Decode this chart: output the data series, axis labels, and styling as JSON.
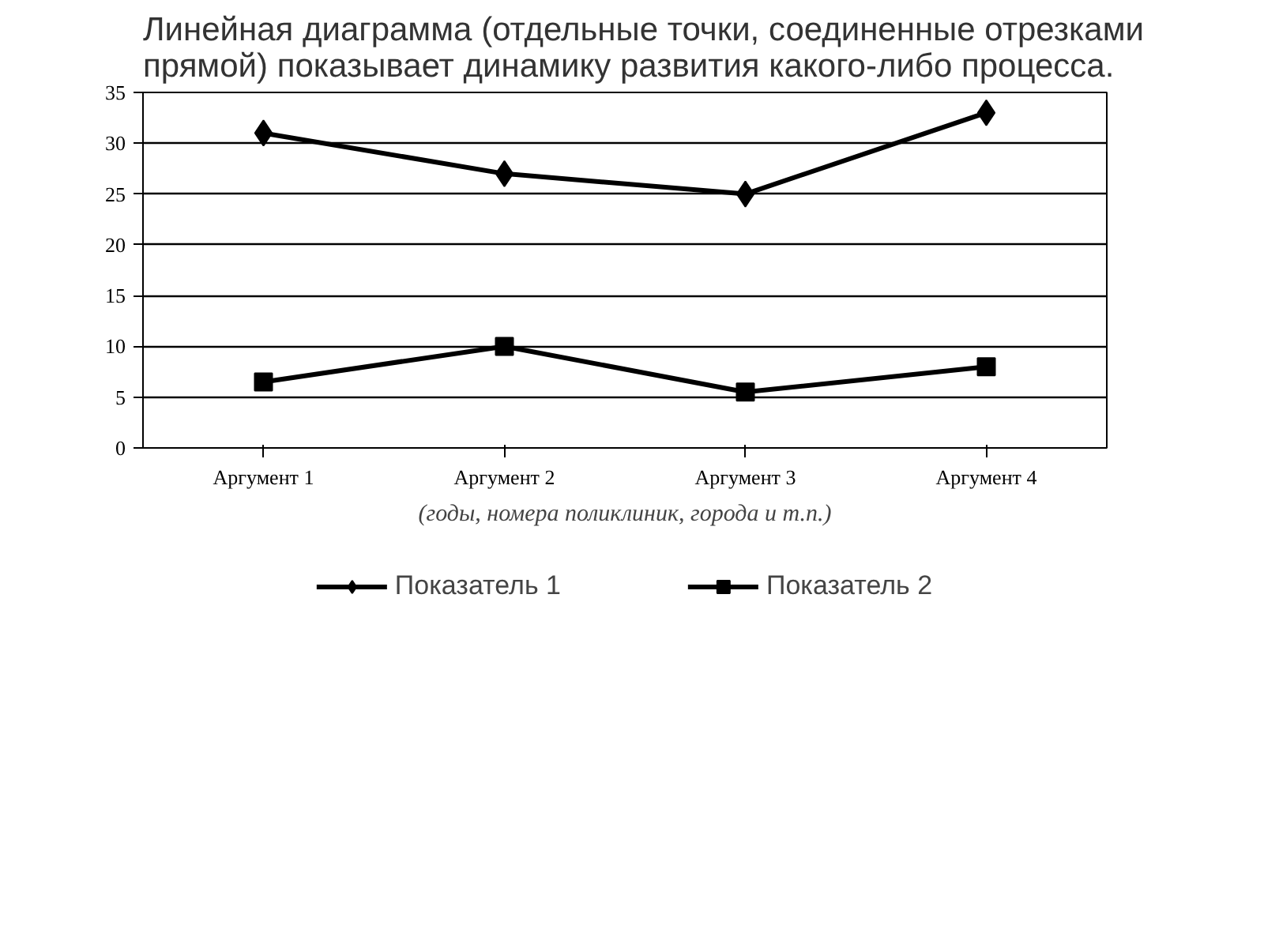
{
  "chart_data": {
    "type": "line",
    "title": "Линейная диаграмма (отдельные точки, соединенные отрезками прямой) показывает динамику развития какого-либо процесса.",
    "xlabel": "(годы, номера поликлиник, города и т.п.)",
    "categories": [
      "Аргумент 1",
      "Аргумент 2",
      "Аргумент 3",
      "Аргумент 4"
    ],
    "series": [
      {
        "name": "Показатель 1",
        "color": "#000000",
        "marker": "diamond",
        "values": [
          31,
          27,
          25,
          33
        ]
      },
      {
        "name": "Показатель 2",
        "color": "#000000",
        "marker": "square",
        "values": [
          6.5,
          10,
          5.5,
          8
        ]
      }
    ],
    "ylim": [
      0,
      35
    ],
    "yticks": [
      0,
      5,
      10,
      15,
      20,
      25,
      30,
      35
    ],
    "grid": "y",
    "legend": "bottom",
    "line_style": "solid"
  }
}
